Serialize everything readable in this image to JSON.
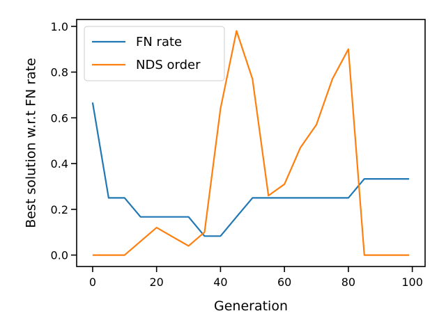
{
  "chart_data": {
    "type": "line",
    "title": "",
    "xlabel": "Generation",
    "ylabel": "Best solution w.r.t FN rate",
    "xlim": [
      -5,
      104
    ],
    "ylim": [
      -0.05,
      1.03
    ],
    "xticks": [
      0,
      20,
      40,
      60,
      80,
      100
    ],
    "yticks": [
      0.0,
      0.2,
      0.4,
      0.6,
      0.8,
      1.0
    ],
    "xtick_labels": [
      "0",
      "20",
      "40",
      "60",
      "80",
      "100"
    ],
    "ytick_labels": [
      "0.0",
      "0.2",
      "0.4",
      "0.6",
      "0.8",
      "1.0"
    ],
    "grid": false,
    "legend_position": "top-left",
    "series": [
      {
        "name": "FN rate",
        "color": "#1f77b4",
        "x": [
          0,
          5,
          10,
          15,
          20,
          25,
          30,
          35,
          40,
          45,
          50,
          55,
          60,
          65,
          70,
          75,
          80,
          85,
          90,
          95,
          99
        ],
        "y": [
          0.667,
          0.25,
          0.25,
          0.167,
          0.167,
          0.167,
          0.167,
          0.083,
          0.083,
          0.167,
          0.25,
          0.25,
          0.25,
          0.25,
          0.25,
          0.25,
          0.25,
          0.333,
          0.333,
          0.333,
          0.333
        ]
      },
      {
        "name": "NDS order",
        "color": "#ff7f0e",
        "x": [
          0,
          5,
          10,
          15,
          20,
          25,
          30,
          35,
          40,
          45,
          50,
          55,
          60,
          65,
          70,
          75,
          80,
          85,
          90,
          95,
          99
        ],
        "y": [
          0.0,
          0.0,
          0.0,
          0.06,
          0.12,
          0.08,
          0.04,
          0.1,
          0.64,
          0.98,
          0.77,
          0.26,
          0.31,
          0.47,
          0.57,
          0.77,
          0.9,
          0.0,
          0.0,
          0.0,
          0.0
        ]
      }
    ]
  }
}
